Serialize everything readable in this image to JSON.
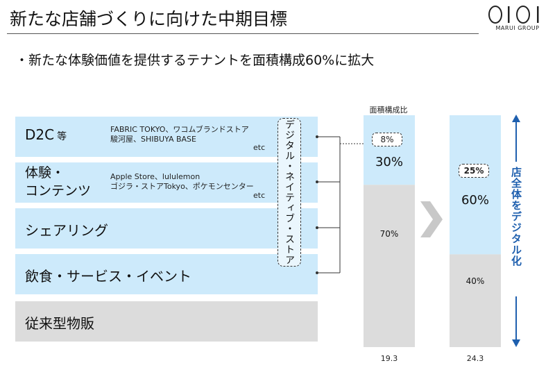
{
  "header": {
    "title": "新たな店舗づくりに向けた中期目標",
    "logo_mark": "OIOI",
    "logo_sub": "MARUI GROUP"
  },
  "subtitle": "・新たな体験価値を提供するテナントを面積構成60%に拡大",
  "categories": [
    {
      "title": "D2C",
      "suffix": "等",
      "examples": [
        "FABRIC TOKYO、ワコムブランドストア",
        "駿河屋、SHIBUYA BASE"
      ],
      "etc": "etc"
    },
    {
      "title_lines": [
        "体験・",
        "コンテンツ"
      ],
      "examples": [
        "Apple Store、lululemon",
        "ゴジラ・ストアTokyo、ポケモンセンター"
      ],
      "etc": "etc"
    },
    {
      "title": "シェアリング"
    },
    {
      "title": "飲食・サービス・イベント"
    },
    {
      "title": "従来型物販"
    }
  ],
  "digital_native_label": "デジタル・ネイティブ・ストア",
  "right_label": "店全体をデジタル化",
  "colors": {
    "digital": "#cdeafb",
    "traditional": "#dcdcdc",
    "arrow": "#1e5fae",
    "chevron": "#c8c8c8"
  },
  "chart_data": {
    "type": "bar",
    "stacked": true,
    "header": "面積構成比",
    "categories": [
      "19.3",
      "24.3"
    ],
    "ylim": [
      0,
      100
    ],
    "series": [
      {
        "values": [
          30,
          60
        ]
      },
      {
        "values": [
          70,
          40
        ]
      }
    ],
    "value_labels": {
      "top": [
        "30%",
        "60%"
      ],
      "bottom": [
        "70%",
        "40%"
      ],
      "highlight": [
        "8%",
        "25%"
      ]
    }
  }
}
